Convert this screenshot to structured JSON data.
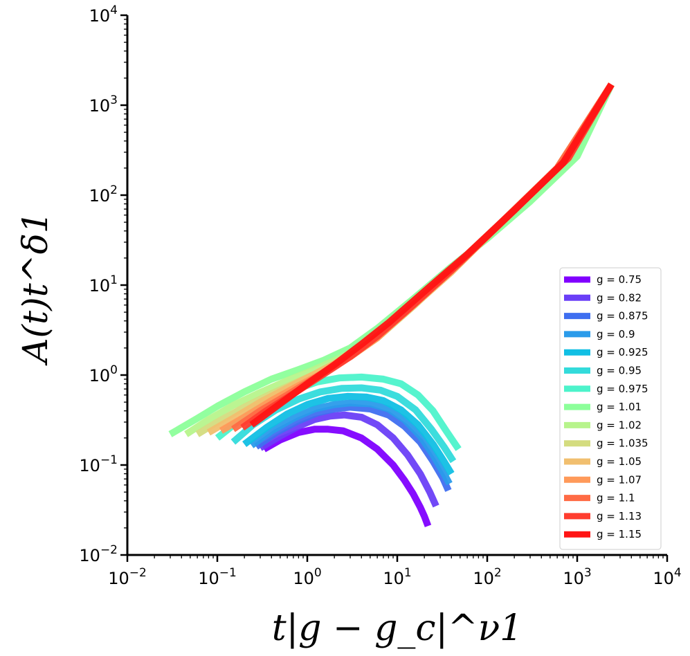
{
  "chart_data": {
    "type": "line",
    "xscale": "log",
    "yscale": "log",
    "xlim": [
      0.01,
      10000
    ],
    "ylim": [
      0.01,
      10000
    ],
    "xlabel": "t|g − g_c|^ν1",
    "ylabel": "A(t)t^δ1",
    "x_ticks": [
      {
        "base": "10",
        "exp": "−2",
        "value": 0.01
      },
      {
        "base": "10",
        "exp": "−1",
        "value": 0.1
      },
      {
        "base": "10",
        "exp": "0",
        "value": 1
      },
      {
        "base": "10",
        "exp": "1",
        "value": 10
      },
      {
        "base": "10",
        "exp": "2",
        "value": 100
      },
      {
        "base": "10",
        "exp": "3",
        "value": 1000
      },
      {
        "base": "10",
        "exp": "4",
        "value": 10000
      }
    ],
    "y_ticks": [
      {
        "base": "10",
        "exp": "−2",
        "value": 0.01
      },
      {
        "base": "10",
        "exp": "−1",
        "value": 0.1
      },
      {
        "base": "10",
        "exp": "0",
        "value": 1
      },
      {
        "base": "10",
        "exp": "1",
        "value": 10
      },
      {
        "base": "10",
        "exp": "2",
        "value": 100
      },
      {
        "base": "10",
        "exp": "3",
        "value": 1000
      },
      {
        "base": "10",
        "exp": "4",
        "value": 10000
      }
    ],
    "legend_position": "lower-right",
    "series": [
      {
        "name": "g = 0.75",
        "color": "#8000ff",
        "x": [
          0.33,
          0.5,
          0.8,
          1.2,
          1.7,
          2.5,
          4,
          6,
          9,
          12,
          15,
          18,
          20,
          22
        ],
        "y": [
          0.15,
          0.19,
          0.23,
          0.25,
          0.25,
          0.24,
          0.2,
          0.15,
          0.1,
          0.068,
          0.048,
          0.034,
          0.027,
          0.021
        ]
      },
      {
        "name": "g = 0.82",
        "color": "#6a3ff7",
        "x": [
          0.3,
          0.5,
          0.8,
          1.2,
          1.8,
          2.6,
          4,
          6,
          9,
          13,
          18,
          23,
          27
        ],
        "y": [
          0.155,
          0.21,
          0.27,
          0.32,
          0.35,
          0.36,
          0.34,
          0.28,
          0.2,
          0.13,
          0.08,
          0.05,
          0.035
        ]
      },
      {
        "name": "g = 0.875",
        "color": "#3f6ff0",
        "x": [
          0.27,
          0.45,
          0.8,
          1.3,
          2,
          3,
          5,
          8,
          12,
          18,
          25,
          32,
          37
        ],
        "y": [
          0.16,
          0.23,
          0.31,
          0.38,
          0.42,
          0.44,
          0.42,
          0.36,
          0.27,
          0.18,
          0.11,
          0.072,
          0.052
        ]
      },
      {
        "name": "g = 0.9",
        "color": "#2a9bea",
        "x": [
          0.24,
          0.4,
          0.7,
          1.2,
          2,
          3,
          5,
          8,
          12,
          18,
          25,
          32,
          38
        ],
        "y": [
          0.165,
          0.24,
          0.33,
          0.42,
          0.47,
          0.49,
          0.48,
          0.42,
          0.32,
          0.21,
          0.13,
          0.085,
          0.062
        ]
      },
      {
        "name": "g = 0.925",
        "color": "#11bfe4",
        "x": [
          0.2,
          0.35,
          0.6,
          1,
          1.7,
          2.8,
          4.5,
          7,
          11,
          17,
          25,
          33,
          40
        ],
        "y": [
          0.17,
          0.26,
          0.37,
          0.47,
          0.55,
          0.58,
          0.57,
          0.52,
          0.41,
          0.28,
          0.17,
          0.11,
          0.08
        ]
      },
      {
        "name": "g = 0.95",
        "color": "#33dbdb",
        "x": [
          0.15,
          0.25,
          0.45,
          0.8,
          1.4,
          2.4,
          4,
          6.5,
          10,
          16,
          24,
          33,
          42
        ],
        "y": [
          0.18,
          0.28,
          0.41,
          0.54,
          0.65,
          0.71,
          0.72,
          0.68,
          0.58,
          0.41,
          0.25,
          0.16,
          0.11
        ]
      },
      {
        "name": "g = 0.975",
        "color": "#4df3cb",
        "x": [
          0.1,
          0.18,
          0.35,
          0.7,
          1.3,
          2.3,
          4,
          7,
          11,
          17,
          25,
          35,
          48
        ],
        "y": [
          0.2,
          0.32,
          0.5,
          0.68,
          0.84,
          0.93,
          0.95,
          0.9,
          0.8,
          0.6,
          0.4,
          0.24,
          0.15
        ]
      },
      {
        "name": "g = 1.01",
        "color": "#8cff9a",
        "x": [
          0.03,
          0.06,
          0.1,
          0.2,
          0.4,
          0.8,
          1.5,
          3,
          6,
          15,
          40,
          100,
          300,
          1000,
          2400
        ],
        "y": [
          0.22,
          0.33,
          0.45,
          0.65,
          0.9,
          1.15,
          1.45,
          2,
          3.3,
          7,
          16,
          33,
          85,
          270,
          1700
        ]
      },
      {
        "name": "g = 1.02",
        "color": "#b7f48c",
        "x": [
          0.045,
          0.08,
          0.15,
          0.3,
          0.6,
          1.2,
          2.5,
          5,
          12,
          40,
          150,
          600,
          2400
        ],
        "y": [
          0.22,
          0.32,
          0.46,
          0.64,
          0.87,
          1.15,
          1.6,
          2.4,
          5,
          15,
          52,
          200,
          1700
        ]
      },
      {
        "name": "g = 1.035",
        "color": "#d4dc7f",
        "x": [
          0.06,
          0.1,
          0.2,
          0.4,
          0.8,
          1.5,
          3,
          6,
          15,
          50,
          200,
          800,
          2400
        ],
        "y": [
          0.22,
          0.3,
          0.44,
          0.62,
          0.85,
          1.12,
          1.6,
          2.6,
          5.8,
          18,
          68,
          260,
          1700
        ]
      },
      {
        "name": "g = 1.05",
        "color": "#f1bf6f",
        "x": [
          0.08,
          0.15,
          0.3,
          0.6,
          1.2,
          2.5,
          5,
          12,
          40,
          150,
          600,
          2400
        ],
        "y": [
          0.23,
          0.33,
          0.5,
          0.72,
          1.02,
          1.5,
          2.3,
          4.8,
          14,
          52,
          200,
          1700
        ]
      },
      {
        "name": "g = 1.07",
        "color": "#ff9a5a",
        "x": [
          0.11,
          0.2,
          0.4,
          0.8,
          1.5,
          3,
          6,
          15,
          50,
          200,
          800,
          2400
        ],
        "y": [
          0.24,
          0.34,
          0.52,
          0.76,
          1.06,
          1.6,
          2.6,
          6,
          18,
          68,
          260,
          1700
        ]
      },
      {
        "name": "g = 1.1",
        "color": "#ff6b45",
        "x": [
          0.15,
          0.3,
          0.6,
          1.2,
          2.5,
          5,
          12,
          40,
          150,
          600,
          2400
        ],
        "y": [
          0.25,
          0.4,
          0.6,
          0.92,
          1.45,
          2.35,
          4.9,
          14.5,
          52,
          200,
          1700
        ]
      },
      {
        "name": "g = 1.13",
        "color": "#ff3d2f",
        "x": [
          0.19,
          0.35,
          0.7,
          1.4,
          3,
          6,
          15,
          50,
          200,
          800,
          2400
        ],
        "y": [
          0.26,
          0.4,
          0.62,
          0.97,
          1.6,
          2.7,
          6,
          18,
          68,
          260,
          1700
        ]
      },
      {
        "name": "g = 1.15",
        "color": "#ff1414",
        "x": [
          0.24,
          0.5,
          1,
          2,
          4,
          8,
          20,
          60,
          200,
          700,
          2400
        ],
        "y": [
          0.28,
          0.48,
          0.8,
          1.3,
          2.2,
          3.8,
          8.5,
          22,
          68,
          230,
          1700
        ]
      }
    ]
  }
}
